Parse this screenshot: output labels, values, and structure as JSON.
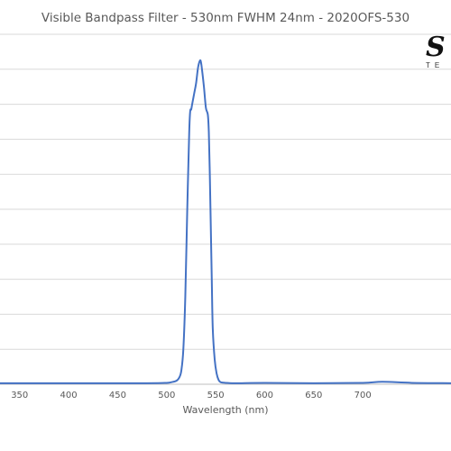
{
  "chart_data": {
    "type": "line",
    "title": "Visible Bandpass Filter - 530nm FWHM 24nm - 2020OFS-530",
    "xlabel": "Wavelength (nm)",
    "ylabel": "",
    "xlim": [
      330,
      790
    ],
    "ylim": [
      0,
      100
    ],
    "x_ticks": [
      350,
      400,
      450,
      500,
      550,
      600,
      650,
      700
    ],
    "y_gridlines": [
      0,
      10,
      20,
      30,
      40,
      50,
      60,
      70,
      80,
      90,
      100
    ],
    "grid": true,
    "legend": "none",
    "series": [
      {
        "color": "#4472C4",
        "x": [
          330,
          400,
          480,
          500,
          505,
          510,
          513,
          515,
          517,
          519,
          521,
          523,
          524,
          525,
          526,
          528,
          530,
          532,
          534,
          535,
          536,
          538,
          540,
          542,
          543,
          544,
          545,
          546,
          547,
          549,
          551,
          553,
          555,
          560,
          570,
          600,
          650,
          700,
          720,
          750,
          790
        ],
        "y": [
          0.3,
          0.3,
          0.3,
          0.4,
          0.6,
          1.0,
          2.0,
          4.0,
          10.0,
          25.0,
          50.0,
          72.0,
          78.0,
          78.5,
          80.0,
          83.0,
          86.0,
          90.5,
          92.5,
          92.0,
          90.0,
          85.0,
          79.0,
          77.0,
          72.0,
          60.0,
          45.0,
          30.0,
          16.0,
          7.0,
          3.0,
          1.2,
          0.6,
          0.4,
          0.3,
          0.4,
          0.3,
          0.4,
          0.7,
          0.4,
          0.3
        ]
      }
    ]
  },
  "logo": {
    "main": "S",
    "sub": "TE"
  }
}
